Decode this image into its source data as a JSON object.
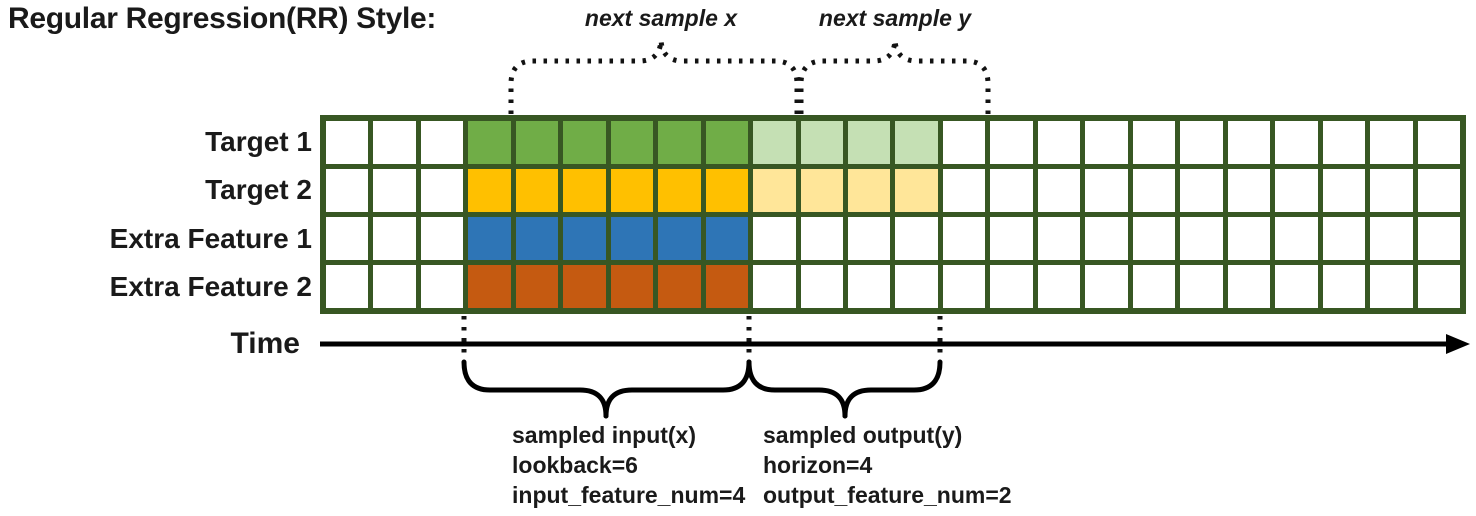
{
  "title": "Regular Regression(RR) Style:",
  "brace_labels": {
    "next_sample_x": "next sample x",
    "next_sample_y": "next sample y"
  },
  "rows": [
    {
      "label": "Target 1",
      "input_color": "#70ad47",
      "output_color": "#c5e0b4"
    },
    {
      "label": "Target 2",
      "input_color": "#ffc000",
      "output_color": "#ffe699"
    },
    {
      "label": "Extra Feature 1",
      "input_color": "#2e75b6",
      "output_color": null
    },
    {
      "label": "Extra Feature 2",
      "input_color": "#c55a11",
      "output_color": null
    }
  ],
  "grid": {
    "num_columns": 24,
    "num_rows": 4,
    "input_start_col": 4,
    "input_end_col": 9,
    "output_start_col": 10,
    "output_end_col": 13,
    "border_color": "#385723",
    "empty_cell_color": "#ffffff"
  },
  "time_axis": {
    "label": "Time"
  },
  "annotations": {
    "input": {
      "lines": [
        "sampled input(x)",
        "lookback=6",
        "input_feature_num=4"
      ]
    },
    "output": {
      "lines": [
        "sampled output(y)",
        "horizon=4",
        "output_feature_num=2"
      ]
    }
  }
}
